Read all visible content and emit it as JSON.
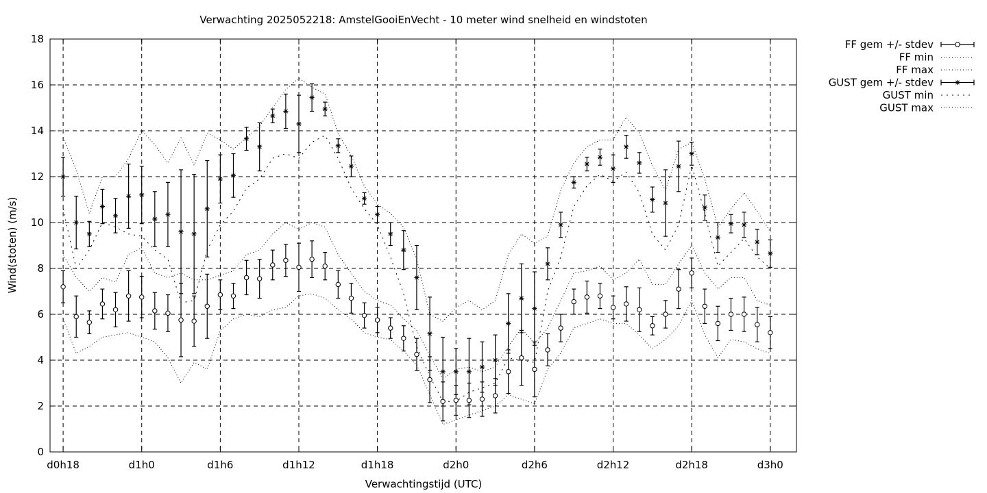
{
  "chart_data": {
    "type": "scatter",
    "title": "Verwachting 2025052218: AmstelGooiEnVecht - 10 meter wind snelheid en windstoten",
    "xlabel": "Verwachtingstijd (UTC)",
    "ylabel": "Wind(stoten) (m/s)",
    "xlim": [
      -1,
      56
    ],
    "ylim": [
      0,
      18
    ],
    "yticks": [
      0,
      2,
      4,
      6,
      8,
      10,
      12,
      14,
      16,
      18
    ],
    "xticks": [
      {
        "x": 0,
        "label": "d0h18"
      },
      {
        "x": 6,
        "label": "d1h0"
      },
      {
        "x": 12,
        "label": "d1h6"
      },
      {
        "x": 18,
        "label": "d1h12"
      },
      {
        "x": 24,
        "label": "d1h18"
      },
      {
        "x": 30,
        "label": "d2h0"
      },
      {
        "x": 36,
        "label": "d2h6"
      },
      {
        "x": 42,
        "label": "d2h12"
      },
      {
        "x": 48,
        "label": "d2h18"
      },
      {
        "x": 54,
        "label": "d3h0"
      }
    ],
    "grid": true,
    "legend_position": "outside-right",
    "legend": [
      {
        "label": "FF gem +/- stdev",
        "style": "errorbar-circle"
      },
      {
        "label": "FF min",
        "style": "dotted"
      },
      {
        "label": "FF max",
        "style": "dotted"
      },
      {
        "label": "GUST gem +/- stdev",
        "style": "errorbar-star"
      },
      {
        "label": "GUST min",
        "style": "dotted-coarse"
      },
      {
        "label": "GUST max",
        "style": "dotted"
      }
    ],
    "x": [
      0,
      1,
      2,
      3,
      4,
      5,
      6,
      7,
      8,
      9,
      10,
      11,
      12,
      13,
      14,
      15,
      16,
      17,
      18,
      19,
      20,
      21,
      22,
      23,
      24,
      25,
      26,
      27,
      28,
      29,
      30,
      31,
      32,
      33,
      34,
      35,
      36,
      37,
      38,
      39,
      40,
      41,
      42,
      43,
      44,
      45,
      46,
      47,
      48,
      49,
      50,
      51,
      52,
      53,
      54
    ],
    "series": [
      {
        "name": "FF gem +/- stdev",
        "marker": "circle",
        "mean": [
          7.2,
          5.9,
          5.65,
          6.45,
          6.2,
          6.8,
          6.75,
          6.15,
          6.05,
          5.75,
          5.7,
          6.35,
          6.85,
          6.8,
          7.6,
          7.55,
          8.15,
          8.35,
          8.05,
          8.4,
          8.1,
          7.3,
          6.7,
          5.95,
          5.75,
          5.4,
          4.95,
          4.25,
          3.15,
          2.2,
          2.25,
          2.25,
          2.3,
          2.45,
          3.5,
          4.1,
          3.6,
          4.45,
          5.4,
          6.55,
          6.75,
          6.8,
          6.3,
          6.45,
          6.2,
          5.5,
          6.0,
          7.1,
          7.8,
          6.35,
          5.6,
          6.0,
          6.0,
          5.55,
          5.2
        ],
        "stdev": [
          0.7,
          0.9,
          0.5,
          0.65,
          0.75,
          1.1,
          0.9,
          0.8,
          0.8,
          1.6,
          1.1,
          1.4,
          0.65,
          0.55,
          0.75,
          0.85,
          0.65,
          0.7,
          1.05,
          0.8,
          0.6,
          0.6,
          0.65,
          0.55,
          0.55,
          0.45,
          0.55,
          0.7,
          1.0,
          0.85,
          0.65,
          0.75,
          0.75,
          0.75,
          0.95,
          1.2,
          1.2,
          0.7,
          0.6,
          0.55,
          0.7,
          0.55,
          0.5,
          0.75,
          0.95,
          0.4,
          0.6,
          0.85,
          0.65,
          0.75,
          0.75,
          0.7,
          0.75,
          0.75,
          0.7
        ]
      },
      {
        "name": "FF min",
        "line": "dotted",
        "values": [
          5.8,
          4.3,
          4.6,
          5.0,
          5.1,
          5.2,
          5.0,
          4.8,
          4.1,
          3.0,
          3.9,
          3.6,
          5.3,
          5.8,
          6.0,
          5.9,
          6.2,
          6.3,
          6.8,
          6.9,
          6.7,
          6.2,
          5.8,
          5.2,
          5.0,
          4.9,
          4.4,
          3.8,
          2.5,
          1.2,
          1.4,
          1.6,
          1.8,
          2.0,
          2.5,
          2.3,
          2.1,
          3.6,
          4.3,
          5.4,
          5.6,
          5.8,
          5.6,
          5.6,
          5.1,
          4.5,
          4.9,
          5.5,
          6.6,
          5.1,
          4.1,
          4.9,
          4.8,
          4.5,
          4.3
        ]
      },
      {
        "name": "FF max",
        "line": "dotted",
        "values": [
          8.6,
          7.6,
          7.0,
          7.6,
          7.4,
          8.6,
          8.9,
          7.8,
          7.6,
          7.8,
          7.5,
          7.5,
          7.7,
          7.9,
          8.6,
          8.8,
          9.5,
          10.0,
          9.7,
          10.0,
          9.8,
          8.6,
          7.8,
          7.0,
          6.6,
          6.4,
          5.8,
          5.3,
          4.2,
          3.2,
          3.6,
          3.7,
          3.5,
          3.7,
          4.6,
          5.4,
          4.7,
          5.4,
          6.6,
          7.8,
          7.9,
          8.1,
          7.5,
          7.8,
          8.4,
          7.3,
          7.3,
          8.2,
          9.0,
          7.8,
          7.1,
          7.6,
          7.6,
          6.6,
          6.4
        ]
      },
      {
        "name": "GUST gem +/- stdev",
        "marker": "star",
        "mean": [
          12.0,
          10.0,
          9.5,
          10.7,
          10.3,
          11.15,
          11.2,
          10.15,
          10.35,
          9.6,
          9.5,
          10.6,
          11.9,
          12.05,
          13.65,
          13.3,
          14.65,
          14.85,
          14.3,
          15.45,
          14.95,
          13.35,
          12.45,
          11.05,
          10.35,
          9.5,
          8.8,
          7.6,
          5.15,
          3.5,
          3.5,
          3.5,
          3.7,
          4.0,
          5.6,
          6.7,
          6.25,
          8.2,
          9.9,
          11.75,
          12.55,
          12.85,
          12.35,
          13.3,
          12.6,
          11.0,
          10.85,
          12.45,
          13.0,
          10.65,
          9.35,
          9.95,
          9.9,
          9.15,
          8.65
        ]
      },
      {
        "name": "GUST min",
        "line": "dotted-coarse",
        "values": [
          10.6,
          8.0,
          8.8,
          10.0,
          9.8,
          9.5,
          9.4,
          8.8,
          8.4,
          6.5,
          6.6,
          8.8,
          9.9,
          10.5,
          11.5,
          11.9,
          12.8,
          13.0,
          12.8,
          13.5,
          13.8,
          12.8,
          11.5,
          10.6,
          9.9,
          8.5,
          6.9,
          4.6,
          3.3,
          2.2,
          2.2,
          2.6,
          2.8,
          3.0,
          4.1,
          4.0,
          3.9,
          7.0,
          8.5,
          10.7,
          11.6,
          12.1,
          11.8,
          12.2,
          11.3,
          9.5,
          8.8,
          9.9,
          12.5,
          10.4,
          8.1,
          8.7,
          9.3,
          8.5,
          8.0
        ]
      },
      {
        "name": "GUST max",
        "line": "dotted",
        "values": [
          13.7,
          12.3,
          10.4,
          12.0,
          12.0,
          12.8,
          14.0,
          13.4,
          12.6,
          13.7,
          12.5,
          13.9,
          13.6,
          13.2,
          13.7,
          14.2,
          15.0,
          15.8,
          16.3,
          15.9,
          15.6,
          13.9,
          12.9,
          11.6,
          10.8,
          10.4,
          9.8,
          8.4,
          6.0,
          5.7,
          6.3,
          6.6,
          6.2,
          6.6,
          8.6,
          9.5,
          9.1,
          9.4,
          11.4,
          12.6,
          13.3,
          13.6,
          13.6,
          14.6,
          13.9,
          12.5,
          11.4,
          13.2,
          13.5,
          11.9,
          9.8,
          10.6,
          11.3,
          10.5,
          9.6
        ]
      }
    ],
    "gust_stdev": [
      0.85,
      1.15,
      0.55,
      0.75,
      0.75,
      1.4,
      1.25,
      1.2,
      1.4,
      2.7,
      2.6,
      2.1,
      1.05,
      0.95,
      0.5,
      1.05,
      0.3,
      0.75,
      1.25,
      0.6,
      0.3,
      0.3,
      0.45,
      0.25,
      0.35,
      0.5,
      0.85,
      1.4,
      1.6,
      1.5,
      1.0,
      1.45,
      1.1,
      1.1,
      1.3,
      1.5,
      1.6,
      0.7,
      0.55,
      0.25,
      0.3,
      0.35,
      0.6,
      0.5,
      0.45,
      0.55,
      1.45,
      1.1,
      0.5,
      0.55,
      0.65,
      0.4,
      0.55,
      0.55,
      0.6
    ]
  }
}
